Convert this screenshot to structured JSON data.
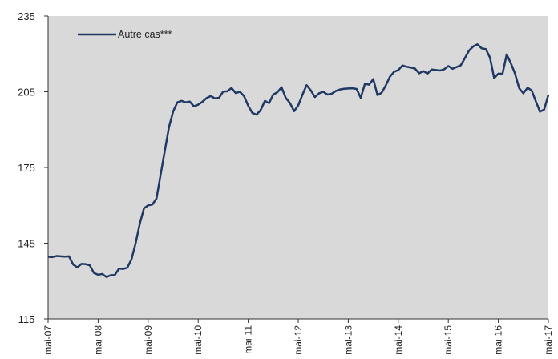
{
  "chart_data": {
    "type": "line",
    "title": "",
    "xlabel": "",
    "ylabel": "",
    "ylim": [
      115,
      235
    ],
    "yticks": [
      "235",
      "205",
      "175",
      "145",
      "115"
    ],
    "xticks": [
      "mai-07",
      "mai-08",
      "mai-09",
      "mai-10",
      "mai-11",
      "mai-12",
      "mai-13",
      "mai-14",
      "mai-15",
      "mai-16",
      "mai-17"
    ],
    "grid": false,
    "legend_position": "top-left",
    "plot_background": "#d9d9d9",
    "series": [
      {
        "name": "Autre cas***",
        "color": "#1f3864",
        "values": [
          139.6,
          139.5,
          139.9,
          139.8,
          139.7,
          139.8,
          136.6,
          135.4,
          136.8,
          136.7,
          136.2,
          133.2,
          132.5,
          132.8,
          131.6,
          132.3,
          132.4,
          134.9,
          134.8,
          135.3,
          138.6,
          145.0,
          152.8,
          158.8,
          160.0,
          160.3,
          162.7,
          172.2,
          181.6,
          191.0,
          197.2,
          200.8,
          201.4,
          200.8,
          201.1,
          199.2,
          199.9,
          201.0,
          202.5,
          203.3,
          202.4,
          202.6,
          205.1,
          205.2,
          206.5,
          204.5,
          205.0,
          203.3,
          199.5,
          196.6,
          195.9,
          197.8,
          201.4,
          200.5,
          203.9,
          204.8,
          206.8,
          202.6,
          200.6,
          197.3,
          199.6,
          203.8,
          207.6,
          205.6,
          202.9,
          204.4,
          205.0,
          203.9,
          204.2,
          205.3,
          205.9,
          206.2,
          206.3,
          206.4,
          206.1,
          202.6,
          208.2,
          207.8,
          210.0,
          203.7,
          204.6,
          207.5,
          211.0,
          212.9,
          213.6,
          215.4,
          214.9,
          214.6,
          214.2,
          212.3,
          213.2,
          212.2,
          213.8,
          213.6,
          213.4,
          213.9,
          215.2,
          214.1,
          214.8,
          215.5,
          218.4,
          221.4,
          223.0,
          223.8,
          222.2,
          221.9,
          218.5,
          210.4,
          212.2,
          212.1,
          219.8,
          216.3,
          212.2,
          206.4,
          204.4,
          206.6,
          205.5,
          201.2,
          197.1,
          198.0,
          203.8
        ]
      }
    ]
  }
}
